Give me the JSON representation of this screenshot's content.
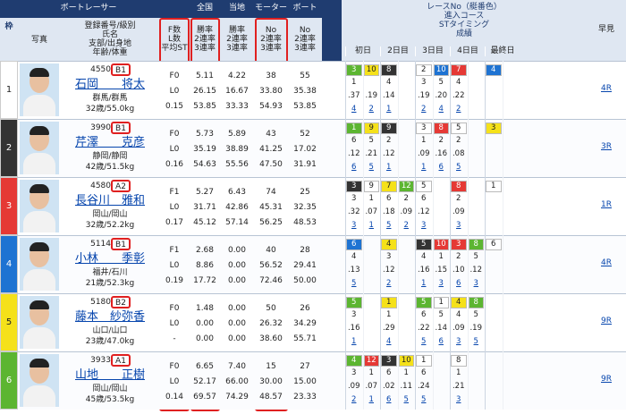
{
  "header": {
    "frame": "枠",
    "photo": "写真",
    "racer": "ボートレーサー",
    "national": "全国",
    "local": "当地",
    "motor": "モーター",
    "boat": "ボート",
    "racer_sub": [
      "登録番号/級別",
      "氏名",
      "支部/出身地",
      "年齢/体重"
    ],
    "fl_sub": [
      "F数",
      "L数",
      "平均ST"
    ],
    "rate_sub": [
      "勝率",
      "2連率",
      "3連率"
    ],
    "local_sub": [
      "勝率",
      "2連率",
      "3連率"
    ],
    "motor_sub": [
      "No",
      "2連率",
      "3連率"
    ],
    "boat_sub": [
      "No",
      "2連率",
      "3連率"
    ],
    "series_title": [
      "レースNo（艇番色）",
      "進入コース",
      "STタイミング",
      "成績"
    ],
    "days": [
      "初日",
      "2日目",
      "3日目",
      "4日目",
      "最終日"
    ],
    "hayami": "早見",
    "this_series": [
      "今",
      "節",
      "成",
      "績"
    ]
  },
  "rows": [
    {
      "frame": "1",
      "frame_color": "#ffffff",
      "reg": "4550",
      "cls": "B1",
      "name": "石岡　　将太",
      "branch": "群馬/群馬",
      "age": "32歳/55.0kg",
      "fl": [
        "F0",
        "L0",
        "0.15"
      ],
      "national": [
        "5.11",
        "26.15",
        "53.85"
      ],
      "local": [
        "4.22",
        "16.67",
        "33.33"
      ],
      "motor": [
        "38",
        "33.80",
        "54.93"
      ],
      "boat": [
        "55",
        "35.38",
        "53.85"
      ],
      "race": [
        "3",
        "10",
        "8",
        null,
        "2",
        "10",
        "7",
        null,
        "4"
      ],
      "colors": [
        "#5cb531",
        "#f5e11a",
        "#333333",
        null,
        "#ffffff",
        "#1e73d2",
        "#e53935",
        null,
        "#1e73d2"
      ],
      "course": [
        "1",
        null,
        "4",
        null,
        "3",
        "5",
        "4",
        null,
        null
      ],
      "st": [
        ".37",
        ".19",
        ".14",
        null,
        ".19",
        ".20",
        ".22",
        null,
        null
      ],
      "result": [
        "4",
        "2",
        "1",
        null,
        "2",
        "4",
        "2",
        null,
        null
      ],
      "hayami": "4R"
    },
    {
      "frame": "2",
      "frame_color": "#333333",
      "reg": "3990",
      "cls": "B1",
      "name": "芹澤　　克彦",
      "branch": "静岡/静岡",
      "age": "42歳/51.5kg",
      "fl": [
        "F0",
        "L0",
        "0.16"
      ],
      "national": [
        "5.73",
        "35.19",
        "54.63"
      ],
      "local": [
        "5.89",
        "38.89",
        "55.56"
      ],
      "motor": [
        "43",
        "41.25",
        "47.50"
      ],
      "boat": [
        "52",
        "17.02",
        "31.91"
      ],
      "race": [
        "1",
        "9",
        "9",
        null,
        "3",
        "8",
        "5",
        null,
        "3"
      ],
      "colors": [
        "#5cb531",
        "#f5e11a",
        "#333333",
        null,
        "#ffffff",
        "#e53935",
        "#ffffff",
        null,
        "#f5e11a"
      ],
      "course": [
        "6",
        "5",
        "2",
        null,
        "1",
        "2",
        "2",
        null,
        null
      ],
      "st": [
        ".12",
        ".21",
        ".12",
        null,
        ".09",
        ".16",
        ".08",
        null,
        null
      ],
      "result": [
        "6",
        "5",
        "1",
        null,
        "1",
        "6",
        "5",
        null,
        null
      ],
      "hayami": "3R"
    },
    {
      "frame": "3",
      "frame_color": "#e53935",
      "reg": "4580",
      "cls": "A2",
      "name": "長谷川　雅和",
      "branch": "岡山/岡山",
      "age": "32歳/52.2kg",
      "fl": [
        "F1",
        "L0",
        "0.17"
      ],
      "national": [
        "5.27",
        "31.71",
        "45.12"
      ],
      "local": [
        "6.43",
        "42.86",
        "57.14"
      ],
      "motor": [
        "74",
        "45.31",
        "56.25"
      ],
      "boat": [
        "25",
        "32.35",
        "48.53"
      ],
      "race": [
        "3",
        "9",
        "7",
        "12",
        "5",
        null,
        "8",
        null,
        "1"
      ],
      "colors": [
        "#333333",
        "#ffffff",
        "#f5e11a",
        "#5cb531",
        "#ffffff",
        null,
        "#e53935",
        null,
        "#ffffff"
      ],
      "course": [
        "3",
        "1",
        "6",
        "2",
        "6",
        null,
        "2",
        null,
        null
      ],
      "st": [
        ".32",
        ".07",
        ".18",
        ".09",
        ".12",
        null,
        ".09",
        null,
        null
      ],
      "result": [
        "3",
        "1",
        "5",
        "2",
        "3",
        null,
        "3",
        null,
        null
      ],
      "hayami": "1R"
    },
    {
      "frame": "4",
      "frame_color": "#1e73d2",
      "reg": "5114",
      "cls": "B1",
      "name": "小林　　季彰",
      "branch": "福井/石川",
      "age": "21歳/52.3kg",
      "fl": [
        "F1",
        "L0",
        "0.19"
      ],
      "national": [
        "2.68",
        "8.86",
        "17.72"
      ],
      "local": [
        "0.00",
        "0.00",
        "0.00"
      ],
      "motor": [
        "40",
        "56.52",
        "72.46"
      ],
      "boat": [
        "28",
        "29.41",
        "50.00"
      ],
      "race": [
        "6",
        null,
        "4",
        null,
        "5",
        "10",
        "3",
        "8",
        "6"
      ],
      "colors": [
        "#1e73d2",
        null,
        "#f5e11a",
        null,
        "#333333",
        "#e53935",
        "#e53935",
        "#5cb531",
        "#ffffff"
      ],
      "course": [
        "4",
        null,
        "3",
        null,
        "4",
        "1",
        "2",
        "5",
        null
      ],
      "st": [
        ".13",
        null,
        ".12",
        null,
        ".16",
        ".15",
        ".10",
        ".12",
        null
      ],
      "result": [
        "5",
        null,
        "2",
        null,
        "1",
        "3",
        "6",
        "3",
        null
      ],
      "hayami": "4R"
    },
    {
      "frame": "5",
      "frame_color": "#f5e11a",
      "reg": "5180",
      "cls": "B2",
      "name": "藤本　紗弥香",
      "branch": "山口/山口",
      "age": "23歳/47.0kg",
      "fl": [
        "F0",
        "L0",
        "-"
      ],
      "national": [
        "1.48",
        "0.00",
        "0.00"
      ],
      "local": [
        "0.00",
        "0.00",
        "0.00"
      ],
      "motor": [
        "50",
        "26.32",
        "38.60"
      ],
      "boat": [
        "26",
        "34.29",
        "55.71"
      ],
      "race": [
        "5",
        null,
        "1",
        null,
        "5",
        "1",
        "4",
        "8",
        null
      ],
      "colors": [
        "#5cb531",
        null,
        "#f5e11a",
        null,
        "#5cb531",
        "#ffffff",
        "#f5e11a",
        "#5cb531",
        null
      ],
      "course": [
        "3",
        null,
        "1",
        null,
        "6",
        "5",
        "4",
        "5",
        null
      ],
      "st": [
        ".16",
        null,
        ".29",
        null,
        ".22",
        ".14",
        ".09",
        ".19",
        null
      ],
      "result": [
        "1",
        null,
        "4",
        null,
        "5",
        "6",
        "3",
        "5",
        null
      ],
      "hayami": "9R"
    },
    {
      "frame": "6",
      "frame_color": "#5cb531",
      "reg": "3933",
      "cls": "A1",
      "name": "山地　　正樹",
      "branch": "岡山/岡山",
      "age": "45歳/53.5kg",
      "fl": [
        "F0",
        "L0",
        "0.14"
      ],
      "national": [
        "6.65",
        "52.17",
        "69.57"
      ],
      "local": [
        "7.40",
        "66.00",
        "74.29"
      ],
      "motor": [
        "15",
        "30.00",
        "48.57"
      ],
      "boat": [
        "27",
        "15.00",
        "23.33"
      ],
      "race": [
        "4",
        "12",
        "3",
        "10",
        "1",
        null,
        "8",
        null,
        null
      ],
      "colors": [
        "#5cb531",
        "#e53935",
        "#333333",
        "#f5e11a",
        "#ffffff",
        null,
        "#ffffff",
        null,
        null
      ],
      "course": [
        "3",
        "1",
        "6",
        "1",
        "6",
        null,
        "1",
        null,
        null
      ],
      "st": [
        ".09",
        ".07",
        ".02",
        ".11",
        ".24",
        null,
        ".21",
        null,
        null
      ],
      "result": [
        "2",
        "1",
        "6",
        "5",
        "5",
        null,
        "3",
        null,
        null
      ],
      "hayami": "9R"
    }
  ]
}
